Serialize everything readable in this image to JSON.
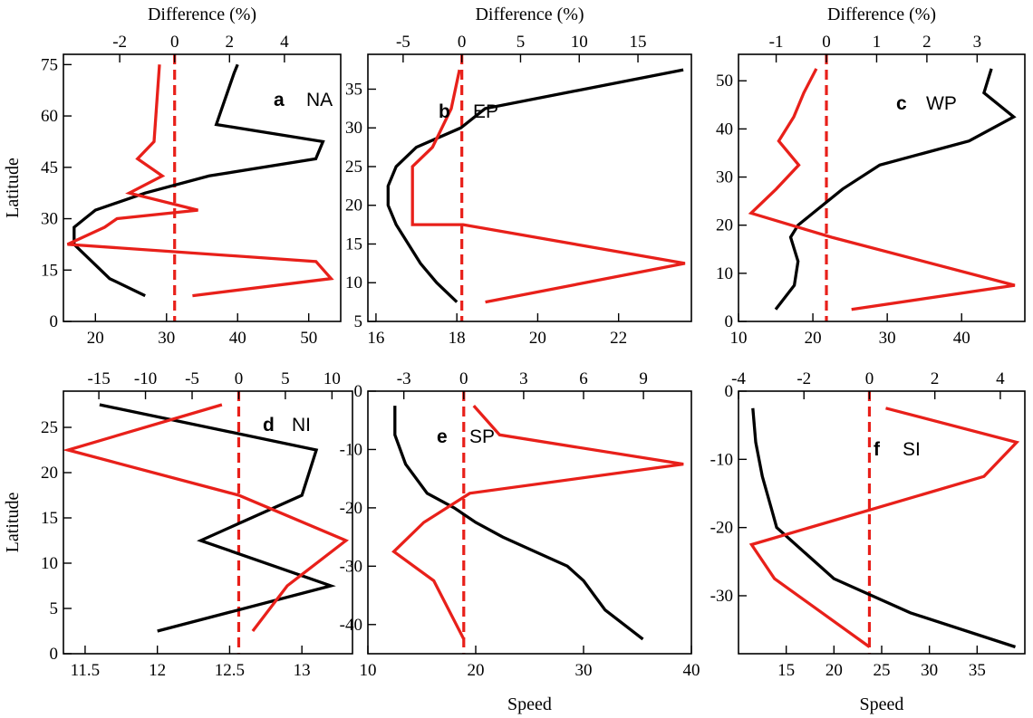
{
  "colors": {
    "speed_line": "#000000",
    "difference_line": "#e8201a",
    "zero_line": "#e8201a",
    "frame": "#000000"
  },
  "chart_data": [
    {
      "type": "line",
      "panel_letter": "a",
      "panel_name": "NA",
      "xlabel_top": "Difference (%)",
      "xlabel_bottom": "",
      "ylabel": "Latitude",
      "bottom_axis": {
        "range": [
          15.5,
          54.5
        ],
        "ticks": [
          "20",
          "30",
          "40",
          "50"
        ]
      },
      "top_axis": {
        "range": [
          -4.05,
          6.05
        ],
        "ticks": [
          "-2",
          "0",
          "2",
          "4"
        ]
      },
      "y_axis": {
        "range": [
          0,
          78
        ],
        "ticks": [
          "0",
          "15",
          "30",
          "45",
          "60",
          "75"
        ]
      },
      "series": [
        {
          "axis": "bottom",
          "color": "speed_line",
          "x": [
            27,
            22,
            19.5,
            17,
            17,
            18.5,
            20,
            27,
            36,
            51,
            52,
            37,
            39.5,
            40
          ],
          "y": [
            7.5,
            12.5,
            17.5,
            22.5,
            27.5,
            30,
            32.5,
            37.5,
            42.5,
            47.5,
            52.5,
            57.5,
            72.5,
            75
          ]
        },
        {
          "axis": "top",
          "color": "difference_line",
          "x": [
            0.65,
            5.7,
            5.15,
            -3.9,
            -2.55,
            -2.1,
            0.85,
            -1.65,
            -0.45,
            -1.35,
            -0.75,
            -0.55
          ],
          "y": [
            7.5,
            12.5,
            17.5,
            22.5,
            27.5,
            30,
            32.5,
            37.5,
            42.5,
            47.5,
            52.5,
            75
          ]
        }
      ]
    },
    {
      "type": "line",
      "panel_letter": "b",
      "panel_name": "EP",
      "xlabel_top": "Difference (%)",
      "xlabel_bottom": "",
      "ylabel": "",
      "bottom_axis": {
        "range": [
          15.8,
          23.8
        ],
        "ticks": [
          "16",
          "18",
          "20",
          "22"
        ]
      },
      "top_axis": {
        "range": [
          -8.0,
          19.55
        ],
        "ticks": [
          "-5",
          "0",
          "5",
          "10",
          "15"
        ]
      },
      "y_axis": {
        "range": [
          5,
          39.5
        ],
        "ticks": [
          "5",
          "10",
          "15",
          "20",
          "25",
          "30",
          "35"
        ]
      },
      "series": [
        {
          "axis": "bottom",
          "color": "speed_line",
          "x": [
            18.0,
            17.5,
            17.1,
            16.8,
            16.5,
            16.3,
            16.3,
            16.5,
            17.0,
            18.1,
            18.7,
            23.6
          ],
          "y": [
            7.5,
            10,
            12.5,
            15,
            17.5,
            20,
            22.5,
            25,
            27.5,
            30,
            32.5,
            37.5
          ]
        },
        {
          "axis": "top",
          "color": "difference_line",
          "x": [
            -0.2,
            -0.9,
            -2.5,
            -4.2,
            -4.2,
            -4.2,
            -0.8,
            0.1,
            19.0,
            2.0
          ],
          "y": [
            37.5,
            32.5,
            27.5,
            25,
            22.5,
            17.5,
            17.5,
            17.5,
            12.5,
            7.5
          ]
        }
      ]
    },
    {
      "type": "line",
      "panel_letter": "c",
      "panel_name": "WP",
      "xlabel_top": "Difference (%)",
      "xlabel_bottom": "",
      "ylabel": "",
      "bottom_axis": {
        "range": [
          10,
          48.5
        ],
        "ticks": [
          "10",
          "20",
          "30",
          "40"
        ]
      },
      "top_axis": {
        "range": [
          -1.75,
          3.95
        ],
        "ticks": [
          "-1",
          "0",
          "1",
          "2",
          "3"
        ]
      },
      "y_axis": {
        "range": [
          0,
          55.5
        ],
        "ticks": [
          "0",
          "10",
          "20",
          "30",
          "40",
          "50"
        ]
      },
      "series": [
        {
          "axis": "bottom",
          "color": "speed_line",
          "x": [
            15,
            17.5,
            18,
            17.5,
            17,
            18,
            20,
            24,
            29,
            41,
            47,
            43,
            44
          ],
          "y": [
            2.5,
            7.5,
            12.5,
            15,
            17.5,
            20,
            22.5,
            27.5,
            32.5,
            37.5,
            42.5,
            47.5,
            52.5
          ]
        },
        {
          "axis": "top",
          "color": "difference_line",
          "x": [
            0.5,
            3.75,
            0.1,
            -1.5,
            -1.0,
            -0.55,
            -0.95,
            -0.65,
            -0.45,
            -0.2
          ],
          "y": [
            2.5,
            7.5,
            17.5,
            22.5,
            27.5,
            32.5,
            37.5,
            42.5,
            47.5,
            52.5
          ]
        }
      ]
    },
    {
      "type": "line",
      "panel_letter": "d",
      "panel_name": "NI",
      "xlabel_top": "",
      "xlabel_bottom": "",
      "ylabel": "Latitude",
      "bottom_axis": {
        "range": [
          11.35,
          13.35
        ],
        "ticks": [
          "11.5",
          "12",
          "12.5",
          "13"
        ]
      },
      "top_axis": {
        "range": [
          -18.8,
          12.2
        ],
        "ticks": [
          "-15",
          "-10",
          "-5",
          "0",
          "5",
          "10"
        ]
      },
      "y_axis": {
        "range": [
          0,
          29
        ],
        "ticks": [
          "0",
          "5",
          "10",
          "15",
          "20",
          "25"
        ]
      },
      "series": [
        {
          "axis": "bottom",
          "color": "speed_line",
          "x": [
            12.0,
            13.2,
            12.3,
            13.0,
            13.1,
            11.6
          ],
          "y": [
            2.5,
            7.5,
            12.5,
            17.5,
            22.5,
            27.5
          ]
        },
        {
          "axis": "top",
          "color": "difference_line",
          "x": [
            1.5,
            5.2,
            11.5,
            0,
            -18.3,
            -1.8
          ],
          "y": [
            2.5,
            7.5,
            12.5,
            17.5,
            22.5,
            27.5
          ]
        }
      ]
    },
    {
      "type": "line",
      "panel_letter": "e",
      "panel_name": "SP",
      "xlabel_top": "",
      "xlabel_bottom": "Speed",
      "ylabel": "",
      "bottom_axis": {
        "range": [
          10,
          40
        ],
        "ticks": [
          "10",
          "20",
          "30",
          "40"
        ]
      },
      "top_axis": {
        "range": [
          -4.8,
          11.4
        ],
        "ticks": [
          "-3",
          "0",
          "3",
          "6",
          "9"
        ]
      },
      "y_axis": {
        "range": [
          -45,
          0
        ],
        "ticks": [
          "-40",
          "-30",
          "-20",
          "-10",
          "0"
        ]
      },
      "series": [
        {
          "axis": "bottom",
          "color": "speed_line",
          "x": [
            12.5,
            12.5,
            13.5,
            15.5,
            18,
            20,
            22.5,
            25.5,
            28.5,
            30,
            31,
            32,
            35.5
          ],
          "y": [
            -2.5,
            -7.5,
            -12.5,
            -17.5,
            -20,
            -22.5,
            -25,
            -27.5,
            -30,
            -32.5,
            -35,
            -37.5,
            -42.5
          ]
        },
        {
          "axis": "top",
          "color": "difference_line",
          "x": [
            0.5,
            1.8,
            11.0,
            0.3,
            -2.0,
            -3.5,
            -1.5,
            0
          ],
          "y": [
            -2.5,
            -7.5,
            -12.5,
            -17.5,
            -22.5,
            -27.5,
            -32.5,
            -42.5
          ]
        }
      ]
    },
    {
      "type": "line",
      "panel_letter": "f",
      "panel_name": "SI",
      "xlabel_top": "",
      "xlabel_bottom": "Speed",
      "ylabel": "",
      "bottom_axis": {
        "range": [
          10,
          40
        ],
        "ticks": [
          "15",
          "20",
          "25",
          "30",
          "35"
        ]
      },
      "top_axis": {
        "range": [
          -4,
          4.75
        ],
        "ticks": [
          "-4",
          "-2",
          "0",
          "2",
          "4"
        ]
      },
      "y_axis": {
        "range": [
          -38.5,
          0
        ],
        "ticks": [
          "-30",
          "-20",
          "-10",
          "0"
        ]
      },
      "series": [
        {
          "axis": "bottom",
          "color": "speed_line",
          "x": [
            11.5,
            11.8,
            12.5,
            13.5,
            14,
            16,
            20,
            24,
            28,
            39
          ],
          "y": [
            -2.5,
            -7.5,
            -12.5,
            -17.5,
            -20,
            -22.5,
            -27.5,
            -30,
            -32.5,
            -37.5
          ]
        },
        {
          "axis": "top",
          "color": "difference_line",
          "x": [
            0.5,
            4.5,
            3.5,
            -3.6,
            -2.9,
            0
          ],
          "y": [
            -2.5,
            -7.5,
            -12.5,
            -22.5,
            -27.5,
            -37.5
          ]
        }
      ]
    }
  ]
}
